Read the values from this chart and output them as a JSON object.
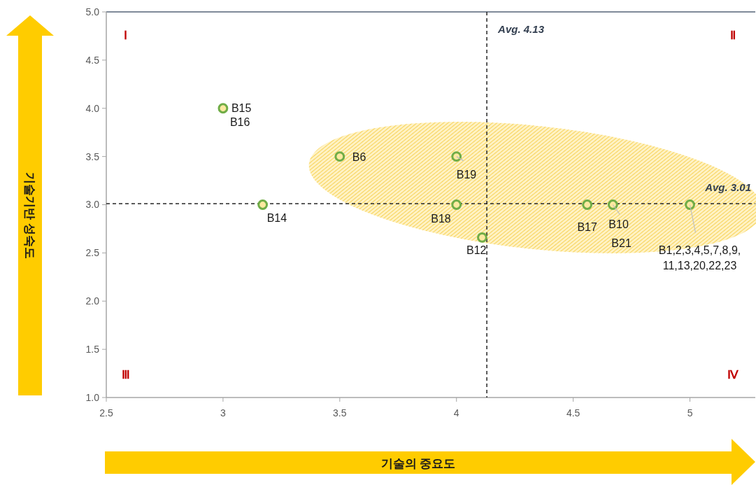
{
  "chart_data": {
    "type": "scatter",
    "xlabel": "기술의 중요도",
    "ylabel": "기술기반 성숙도",
    "xlim": [
      2.5,
      5.28
    ],
    "xticks": [
      2.5,
      3,
      3.5,
      4,
      4.5,
      5
    ],
    "ylim": [
      1,
      5
    ],
    "yticks": [
      {
        "value": 1,
        "label": "1.0"
      },
      {
        "value": 1.5,
        "label": "1.5"
      },
      {
        "value": 2,
        "label": "2.0"
      },
      {
        "value": 2.5,
        "label": "2.5"
      },
      {
        "value": 3,
        "label": "3.0"
      },
      {
        "value": 3.5,
        "label": "3.5"
      },
      {
        "value": 4,
        "label": "4.0"
      },
      {
        "value": 4.5,
        "label": "4.5"
      },
      {
        "value": 5,
        "label": "5.0"
      }
    ],
    "grid": false,
    "marker": "circle",
    "series": [
      {
        "color": "#70ad47",
        "x": [
          3.0,
          3.5,
          4.0,
          3.17,
          4.0,
          4.11,
          4.56,
          4.67,
          5.0
        ],
        "values": [
          4.0,
          3.5,
          3.5,
          3.0,
          3.0,
          2.66,
          3.0,
          3.0,
          3.0
        ]
      }
    ],
    "ref_lines": [
      {
        "axis": "x",
        "value": 4.13,
        "label": "Avg. 4.13",
        "color": "#262626",
        "line_style": "dashed"
      },
      {
        "axis": "y",
        "value": 3.01,
        "label": "Avg. 3.01",
        "color": "#262626",
        "line_style": "dashed"
      }
    ],
    "annotations": [
      "Ⅰ",
      "Ⅱ",
      "Ⅲ",
      "Ⅳ",
      {
        "text": "B15",
        "x": 3.0,
        "y": 4.0
      },
      {
        "text": "B16",
        "x": 3.0,
        "y": 4.0
      },
      {
        "text": "B6",
        "x": 3.5,
        "y": 3.5
      },
      {
        "text": "B19",
        "x": 4.0,
        "y": 3.5
      },
      {
        "text": "B14",
        "x": 3.17,
        "y": 3.0
      },
      {
        "text": "B18",
        "x": 4.0,
        "y": 3.0
      },
      {
        "text": "B12",
        "x": 4.11,
        "y": 2.66
      },
      {
        "text": "B17",
        "x": 4.56,
        "y": 3.0
      },
      {
        "text": "B10",
        "x": 4.67,
        "y": 3.0
      },
      {
        "text": "B21",
        "x": 4.67,
        "y": 3.0
      },
      {
        "text": "B1,2,3,4,5,7,8,9,\n11,13,20,22,23",
        "x": 5.0,
        "y": 3.0
      }
    ]
  }
}
